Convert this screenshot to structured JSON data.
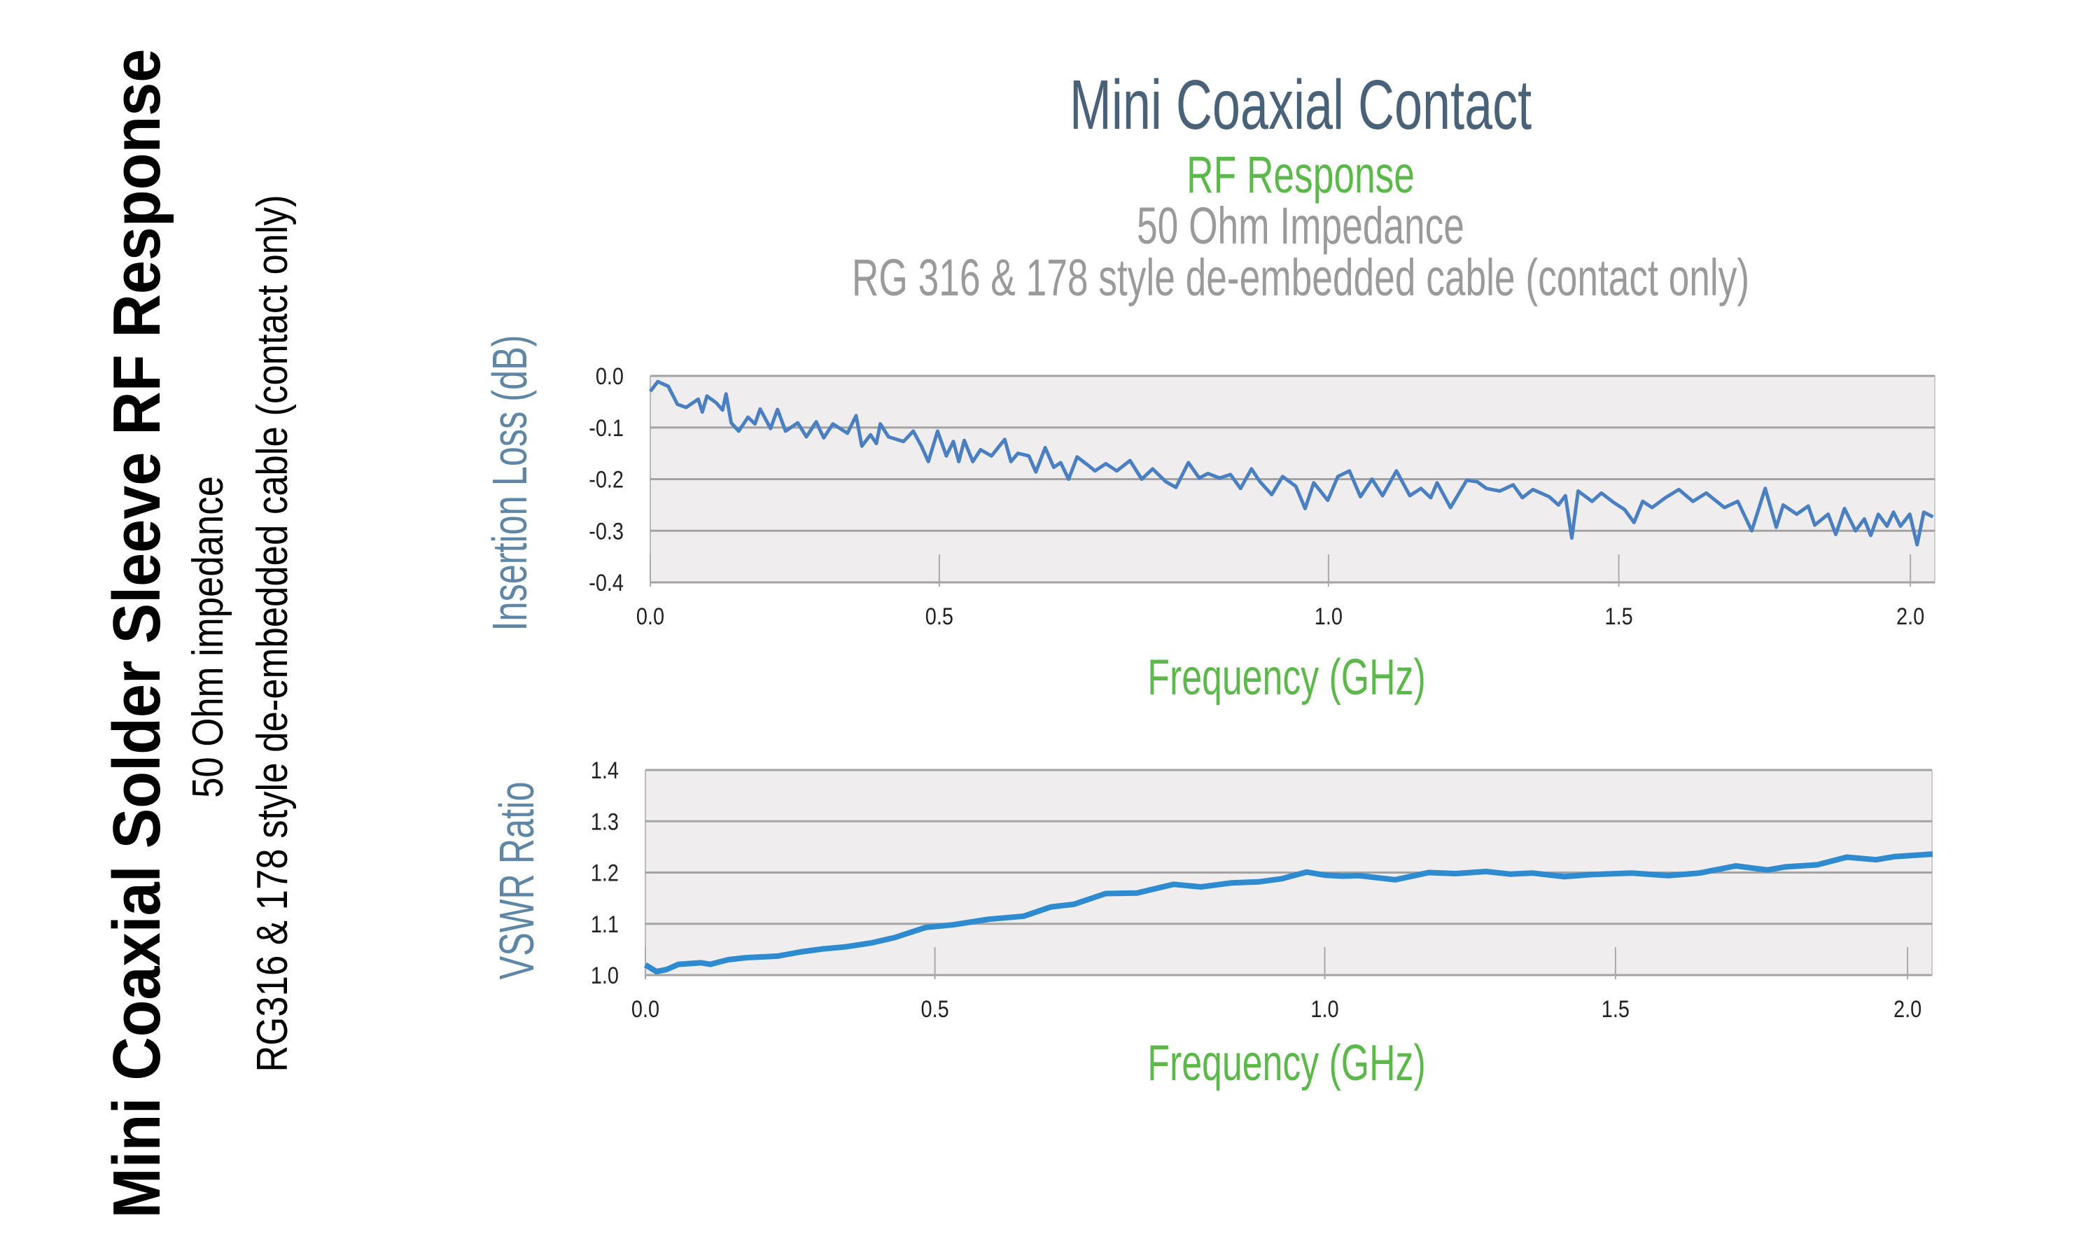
{
  "side_panel": {
    "title": "Mini Coaxial Solder Sleeve RF Response",
    "line1": "50 Ohm impedance",
    "line2": "RG316 & 178 style de-embedded cable (contact only)"
  },
  "header": {
    "title": "Mini Coaxial Contact",
    "subtitle": "RF Response",
    "line1": "50 Ohm Impedance",
    "line2": "RG 316 & 178 style de-embedded cable (contact only)"
  },
  "colors": {
    "title": "#4a6278",
    "subtitle": "#5cb84a",
    "gray_text": "#9a9a9a",
    "axis_title_y": "#5f87a5",
    "axis_title_x": "#5cb84a",
    "plot_bg": "#efedee",
    "grid": "#a3a3a3",
    "insertion_loss_line": "#4a7fc1",
    "vswr_line": "#2e8bd0"
  },
  "chart_data": [
    {
      "type": "line",
      "xlabel": "Frequency (GHz)",
      "ylabel": "Insertion Loss (dB)",
      "xlim": [
        0.0,
        2.04
      ],
      "ylim": [
        -0.4,
        0.0
      ],
      "xticks": [
        "0.0",
        "0.5",
        "1.0",
        "1.5",
        "2.0"
      ],
      "yticks": [
        "0.0",
        "-0.1",
        "-0.2",
        "-0.3",
        "-0.4"
      ],
      "grid": "horizontal",
      "x": [
        0,
        0.013,
        0.031,
        0.047,
        0.062,
        0.083,
        0.09,
        0.098,
        0.114,
        0.125,
        0.131,
        0.14,
        0.153,
        0.169,
        0.181,
        0.19,
        0.208,
        0.22,
        0.234,
        0.255,
        0.27,
        0.287,
        0.3,
        0.316,
        0.341,
        0.356,
        0.366,
        0.381,
        0.391,
        0.398,
        0.412,
        0.438,
        0.455,
        0.469,
        0.481,
        0.497,
        0.509,
        0.518,
        0.525,
        0.532,
        0.543,
        0.553,
        0.567,
        0.584,
        0.592,
        0.601,
        0.615,
        0.624,
        0.636,
        0.647,
        0.656,
        0.666,
        0.677,
        0.691,
        0.7,
        0.714,
        0.728,
        0.745,
        0.76,
        0.774,
        0.791,
        0.804,
        0.82,
        0.834,
        0.845,
        0.86,
        0.874,
        0.887,
        0.901,
        0.912,
        0.927,
        0.941,
        0.958,
        0.97,
        0.981,
        0.999,
        1.016,
        1.036,
        1.055,
        1.075,
        1.093,
        1.117,
        1.14,
        1.159,
        1.176,
        1.187,
        1.21,
        1.238,
        1.256,
        1.272,
        1.295,
        1.318,
        1.334,
        1.352,
        1.38,
        1.396,
        1.408,
        1.419,
        1.43,
        1.454,
        1.47,
        1.491,
        1.51,
        1.526,
        1.541,
        1.557,
        1.58,
        1.603,
        1.627,
        1.65,
        1.681,
        1.704,
        1.728,
        1.751,
        1.77,
        1.782,
        1.805,
        1.825,
        1.836,
        1.859,
        1.872,
        1.887,
        1.906,
        1.921,
        1.932,
        1.945,
        1.96,
        1.971,
        1.983,
        1.999,
        2.011,
        2.022,
        2.037
      ],
      "y": [
        -0.03,
        -0.011,
        -0.02,
        -0.055,
        -0.061,
        -0.045,
        -0.07,
        -0.039,
        -0.052,
        -0.066,
        -0.035,
        -0.091,
        -0.107,
        -0.08,
        -0.093,
        -0.064,
        -0.102,
        -0.065,
        -0.107,
        -0.091,
        -0.118,
        -0.089,
        -0.12,
        -0.093,
        -0.111,
        -0.077,
        -0.136,
        -0.114,
        -0.131,
        -0.093,
        -0.118,
        -0.127,
        -0.107,
        -0.136,
        -0.166,
        -0.107,
        -0.155,
        -0.127,
        -0.166,
        -0.125,
        -0.166,
        -0.143,
        -0.155,
        -0.123,
        -0.166,
        -0.15,
        -0.155,
        -0.186,
        -0.139,
        -0.177,
        -0.168,
        -0.2,
        -0.157,
        -0.173,
        -0.184,
        -0.17,
        -0.184,
        -0.164,
        -0.2,
        -0.18,
        -0.205,
        -0.216,
        -0.168,
        -0.198,
        -0.189,
        -0.198,
        -0.191,
        -0.218,
        -0.18,
        -0.205,
        -0.23,
        -0.195,
        -0.214,
        -0.257,
        -0.207,
        -0.241,
        -0.195,
        -0.184,
        -0.234,
        -0.2,
        -0.232,
        -0.184,
        -0.232,
        -0.218,
        -0.236,
        -0.207,
        -0.255,
        -0.202,
        -0.205,
        -0.218,
        -0.223,
        -0.211,
        -0.236,
        -0.22,
        -0.234,
        -0.25,
        -0.232,
        -0.314,
        -0.223,
        -0.243,
        -0.227,
        -0.245,
        -0.259,
        -0.284,
        -0.243,
        -0.255,
        -0.236,
        -0.22,
        -0.243,
        -0.227,
        -0.255,
        -0.243,
        -0.3,
        -0.218,
        -0.293,
        -0.25,
        -0.268,
        -0.252,
        -0.289,
        -0.268,
        -0.307,
        -0.257,
        -0.3,
        -0.277,
        -0.309,
        -0.268,
        -0.291,
        -0.264,
        -0.291,
        -0.268,
        -0.327,
        -0.264,
        -0.273
      ]
    },
    {
      "type": "line",
      "xlabel": "Frequency (GHz)",
      "ylabel": "VSWR Ratio",
      "xlim": [
        0.0,
        2.04
      ],
      "ylim": [
        1.0,
        1.4
      ],
      "xticks": [
        "0.0",
        "0.5",
        "1.0",
        "1.5",
        "2.0"
      ],
      "yticks": [
        "1.4",
        "1.3",
        "1.2",
        "1.1",
        "1.0"
      ],
      "grid": "horizontal",
      "x": [
        0,
        0.019,
        0.037,
        0.057,
        0.096,
        0.112,
        0.143,
        0.174,
        0.228,
        0.267,
        0.306,
        0.345,
        0.391,
        0.43,
        0.484,
        0.523,
        0.569,
        0.614,
        0.649,
        0.678,
        0.719,
        0.759,
        0.806,
        0.841,
        0.881,
        0.916,
        0.945,
        0.977,
        1.0,
        1.031,
        1.059,
        1.121,
        1.179,
        1.225,
        1.277,
        1.319,
        1.357,
        1.412,
        1.458,
        1.528,
        1.59,
        1.644,
        1.706,
        1.76,
        1.791,
        1.845,
        1.896,
        1.946,
        1.977,
        2.041
      ],
      "y": [
        1.02,
        1.007,
        1.011,
        1.021,
        1.024,
        1.021,
        1.03,
        1.034,
        1.037,
        1.045,
        1.051,
        1.055,
        1.063,
        1.073,
        1.093,
        1.098,
        1.109,
        1.115,
        1.133,
        1.138,
        1.159,
        1.16,
        1.177,
        1.172,
        1.18,
        1.182,
        1.188,
        1.201,
        1.195,
        1.193,
        1.194,
        1.186,
        1.2,
        1.198,
        1.202,
        1.197,
        1.199,
        1.192,
        1.196,
        1.199,
        1.194,
        1.199,
        1.213,
        1.205,
        1.211,
        1.215,
        1.23,
        1.225,
        1.231,
        1.236
      ]
    }
  ]
}
